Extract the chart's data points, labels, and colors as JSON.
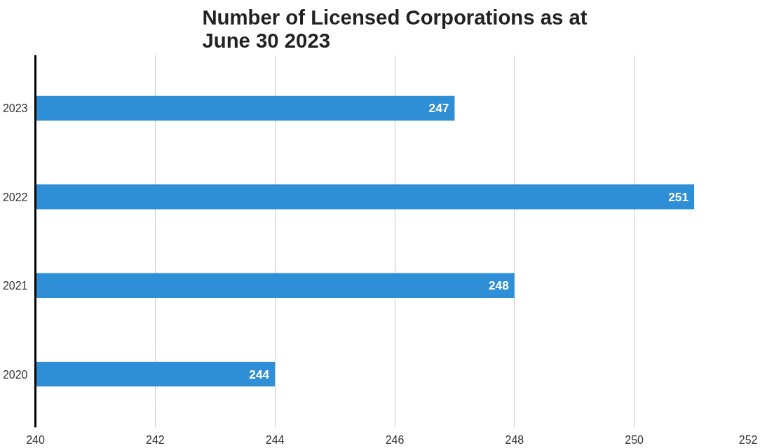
{
  "chart_data": {
    "type": "bar",
    "orientation": "horizontal",
    "title": "Number of Licensed Corporations as at\nJune 30 2023",
    "categories": [
      "2023",
      "2022",
      "2021",
      "2020"
    ],
    "values": [
      247,
      251,
      248,
      244
    ],
    "color": "#2e8fd6",
    "xlim": [
      240,
      252
    ],
    "xticks": [
      240,
      242,
      244,
      246,
      248,
      250,
      252
    ],
    "grid": "x",
    "data_labels": true
  }
}
